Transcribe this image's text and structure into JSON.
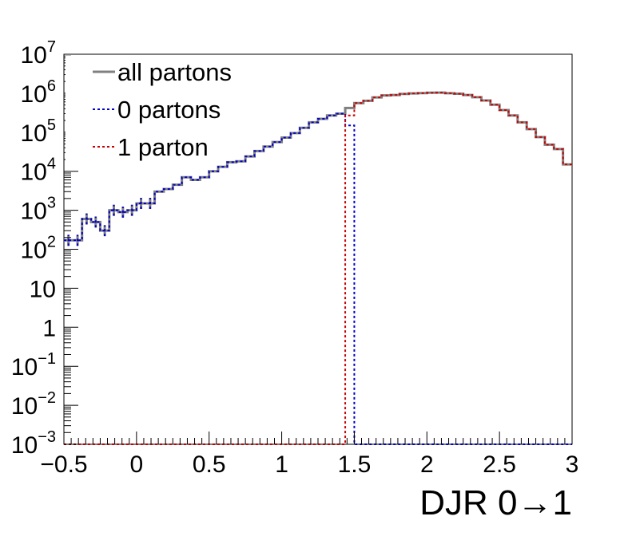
{
  "chart_data": {
    "type": "line",
    "step": true,
    "xlabel": "DJR 0→1",
    "ylabel": "",
    "xlim": [
      -0.5,
      3.0
    ],
    "ylim": [
      0.001,
      10000000
    ],
    "yscale": "log",
    "grid": false,
    "legend_position": "top-left",
    "bin_width": 0.0625,
    "x_ticks": [
      {
        "value": -0.5,
        "label": "−0.5"
      },
      {
        "value": 0,
        "label": "0"
      },
      {
        "value": 0.5,
        "label": "0.5"
      },
      {
        "value": 1,
        "label": "1"
      },
      {
        "value": 1.5,
        "label": "1.5"
      },
      {
        "value": 2,
        "label": "2"
      },
      {
        "value": 2.5,
        "label": "2.5"
      },
      {
        "value": 3,
        "label": "3"
      }
    ],
    "y_ticks": [
      {
        "value": 0.001,
        "base": "10",
        "exp": "−3"
      },
      {
        "value": 0.01,
        "base": "10",
        "exp": "−2"
      },
      {
        "value": 0.1,
        "base": "10",
        "exp": "−1"
      },
      {
        "value": 1,
        "base": "1",
        "exp": ""
      },
      {
        "value": 10,
        "base": "10",
        "exp": ""
      },
      {
        "value": 100,
        "base": "10",
        "exp": "2"
      },
      {
        "value": 1000,
        "base": "10",
        "exp": "3"
      },
      {
        "value": 10000,
        "base": "10",
        "exp": "4"
      },
      {
        "value": 100000,
        "base": "10",
        "exp": "5"
      },
      {
        "value": 1000000,
        "base": "10",
        "exp": "6"
      },
      {
        "value": 10000000,
        "base": "10",
        "exp": "7"
      }
    ],
    "bin_edges": [
      -0.5,
      -0.4375,
      -0.375,
      -0.3125,
      -0.25,
      -0.1875,
      -0.125,
      -0.0625,
      0,
      0.0625,
      0.125,
      0.1875,
      0.25,
      0.3125,
      0.375,
      0.4375,
      0.5,
      0.5625,
      0.625,
      0.6875,
      0.75,
      0.8125,
      0.875,
      0.9375,
      1,
      1.0625,
      1.125,
      1.1875,
      1.25,
      1.3125,
      1.375,
      1.4375,
      1.5,
      1.5625,
      1.625,
      1.6875,
      1.75,
      1.8125,
      1.875,
      1.9375,
      2,
      2.0625,
      2.125,
      2.1875,
      2.25,
      2.3125,
      2.375,
      2.4375,
      2.5,
      2.5625,
      2.625,
      2.6875,
      2.75,
      2.8125,
      2.875,
      2.9375,
      3
    ],
    "series": [
      {
        "name": "all partons",
        "color": "#808080",
        "dash": "solid",
        "values": [
          170,
          170,
          600,
          500,
          300,
          1000,
          900,
          1000,
          1500,
          1500,
          3000,
          3500,
          4500,
          7000,
          6000,
          7000,
          10000,
          13000,
          17000,
          18000,
          24000,
          33000,
          43000,
          56000,
          73000,
          95000,
          130000,
          180000,
          220000,
          270000,
          300000,
          420000,
          560000,
          640000,
          780000,
          880000,
          900000,
          960000,
          990000,
          1010000,
          1030000,
          1040000,
          1000000,
          970000,
          900000,
          790000,
          650000,
          510000,
          370000,
          270000,
          180000,
          120000,
          75000,
          48000,
          37000,
          15000
        ]
      },
      {
        "name": "0 partons",
        "color": "#0000cc",
        "dash": "dotted",
        "values": [
          170,
          170,
          600,
          500,
          300,
          1000,
          900,
          1000,
          1500,
          1500,
          3000,
          3500,
          4500,
          7000,
          6000,
          7000,
          10000,
          13000,
          17000,
          18000,
          24000,
          33000,
          43000,
          56000,
          73000,
          95000,
          130000,
          180000,
          220000,
          270000,
          300000,
          150000,
          0.001,
          0.001,
          0.001,
          0.001,
          0.001,
          0.001,
          0.001,
          0.001,
          0.001,
          0.001,
          0.001,
          0.001,
          0.001,
          0.001,
          0.001,
          0.001,
          0.001,
          0.001,
          0.001,
          0.001,
          0.001,
          0.001,
          0.001,
          0.001
        ]
      },
      {
        "name": "1 parton",
        "color": "#cc0000",
        "dash": "dotted",
        "values": [
          0.001,
          0.001,
          0.001,
          0.001,
          0.001,
          0.001,
          0.001,
          0.001,
          0.001,
          0.001,
          0.001,
          0.001,
          0.001,
          0.001,
          0.001,
          0.001,
          0.001,
          0.001,
          0.001,
          0.001,
          0.001,
          0.001,
          0.001,
          0.001,
          0.001,
          0.001,
          0.001,
          0.001,
          0.001,
          0.001,
          0.001,
          270000,
          560000,
          640000,
          780000,
          880000,
          900000,
          960000,
          990000,
          1010000,
          1030000,
          1040000,
          1000000,
          970000,
          900000,
          790000,
          650000,
          510000,
          370000,
          270000,
          180000,
          120000,
          75000,
          48000,
          37000,
          15000
        ]
      }
    ]
  }
}
